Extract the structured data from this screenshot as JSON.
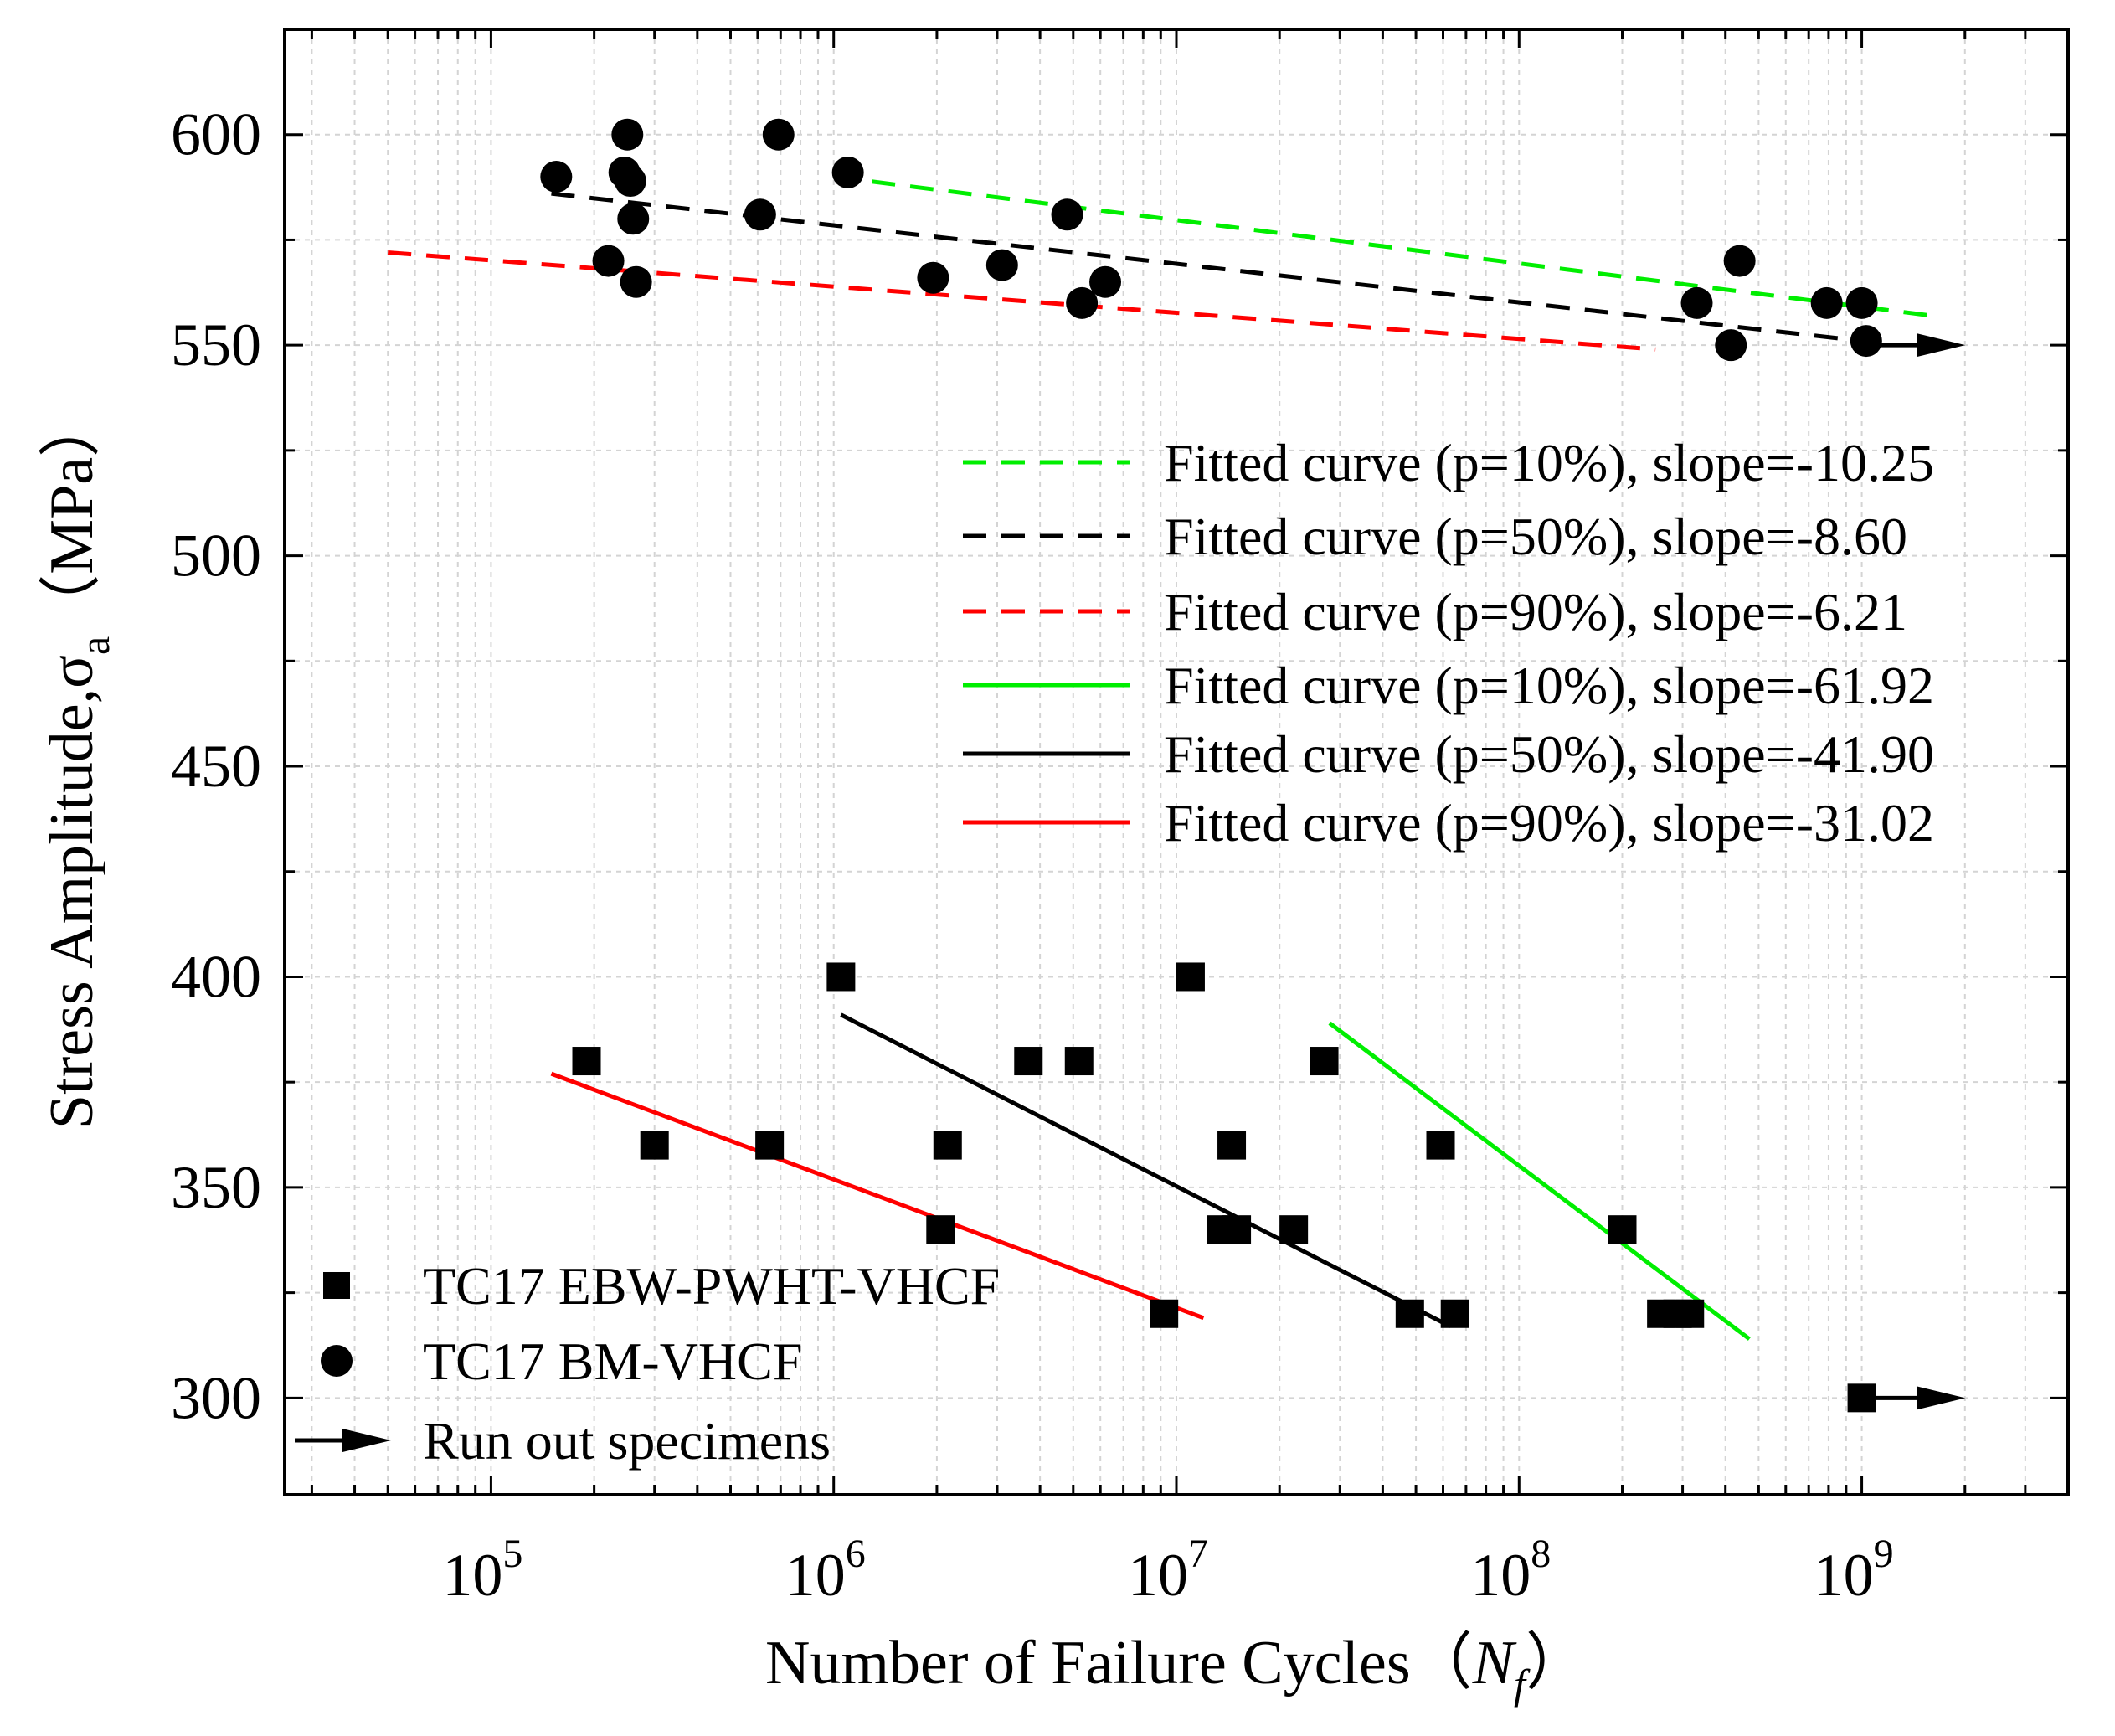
{
  "chart_data": {
    "type": "scatter",
    "xscale": "log",
    "xlim": [
      25000,
      4000000000
    ],
    "ylim": [
      277,
      625
    ],
    "grid": true,
    "xlabel": {
      "main": "Number of Failure Cycles",
      "open": "（",
      "var": "N",
      "sub": "f",
      "close": "）"
    },
    "ylabel": {
      "main": "Stress Amplitude,",
      "sym": "σ",
      "sub": "a",
      "unit": "（MPa）"
    },
    "yticks": [
      {
        "value": 300,
        "label": "300"
      },
      {
        "value": 350,
        "label": "350"
      },
      {
        "value": 400,
        "label": "400"
      },
      {
        "value": 450,
        "label": "450"
      },
      {
        "value": 500,
        "label": "500"
      },
      {
        "value": 550,
        "label": "550"
      },
      {
        "value": 600,
        "label": "600"
      }
    ],
    "xticks": [
      {
        "value": 100000,
        "base": "10",
        "exp": "5"
      },
      {
        "value": 1000000,
        "base": "10",
        "exp": "6"
      },
      {
        "value": 10000000,
        "base": "10",
        "exp": "7"
      },
      {
        "value": 100000000,
        "base": "10",
        "exp": "8"
      },
      {
        "value": 1000000000,
        "base": "10",
        "exp": "9"
      }
    ],
    "series": [
      {
        "name": "TC17 EBW-PWHT-VHCF",
        "marker": "square",
        "points": [
          [
            190000,
            380
          ],
          [
            300000,
            360
          ],
          [
            650000,
            360
          ],
          [
            1050000,
            400
          ],
          [
            2050000,
            340
          ],
          [
            2150000,
            360
          ],
          [
            3700000,
            380
          ],
          [
            5200000,
            380
          ],
          [
            9200000,
            320
          ],
          [
            11000000,
            400
          ],
          [
            13500000,
            340
          ],
          [
            14500000,
            360
          ],
          [
            15000000,
            340
          ],
          [
            22000000,
            340
          ],
          [
            27000000,
            380
          ],
          [
            48000000,
            320
          ],
          [
            59000000,
            360
          ],
          [
            65000000,
            320
          ],
          [
            200000000,
            340
          ],
          [
            260000000,
            320
          ],
          [
            290000000,
            320
          ],
          [
            315000000,
            320
          ],
          [
            1000000000,
            300
          ]
        ]
      },
      {
        "name": "TC17 BM-VHCF",
        "marker": "circle",
        "points": [
          [
            155000,
            590
          ],
          [
            220000,
            570
          ],
          [
            245000,
            591
          ],
          [
            250000,
            600
          ],
          [
            255000,
            589
          ],
          [
            260000,
            580
          ],
          [
            265000,
            565
          ],
          [
            610000,
            581
          ],
          [
            690000,
            600
          ],
          [
            1100000,
            591
          ],
          [
            1950000,
            566
          ],
          [
            3100000,
            569
          ],
          [
            4800000,
            581
          ],
          [
            5300000,
            560
          ],
          [
            6200000,
            565
          ],
          [
            330000000,
            560
          ],
          [
            415000000,
            550
          ],
          [
            440000000,
            570
          ],
          [
            790000000,
            560
          ],
          [
            1000000000,
            560
          ],
          [
            1030000000,
            551
          ]
        ]
      },
      {
        "name": "Run out specimens",
        "marker": "arrow",
        "points": [
          [
            1050000000,
            300
          ],
          [
            1050000000,
            550
          ]
        ]
      }
    ],
    "fitted_curves": [
      {
        "label": "Fitted curve  (p=10%), slope=-10.25",
        "color": "#00ee00",
        "style": "dashed",
        "points": [
          [
            1000000,
            590
          ],
          [
            1600000000,
            557
          ]
        ]
      },
      {
        "label": "Fitted curve  (p=50%), slope=-8.60",
        "color": "#000000",
        "style": "dashed",
        "points": [
          [
            150000,
            586
          ],
          [
            1000000000,
            551
          ]
        ]
      },
      {
        "label": "Fitted curve  (p=90%), slope=-6.21",
        "color": "#ff0000",
        "style": "dashed",
        "points": [
          [
            50000,
            572
          ],
          [
            250000000,
            549
          ]
        ]
      },
      {
        "label": "Fitted curve  (p=10%), slope=-61.92",
        "color": "#00ee00",
        "style": "solid",
        "points": [
          [
            28000000,
            389
          ],
          [
            470000000,
            314
          ]
        ]
      },
      {
        "label": "Fitted curve  (p=50%), slope=-41.90",
        "color": "#000000",
        "style": "solid",
        "points": [
          [
            1050000,
            391
          ],
          [
            63000000,
            317
          ]
        ]
      },
      {
        "label": "Fitted curve  (p=90%), slope=-31.02",
        "color": "#ff0000",
        "style": "solid",
        "points": [
          [
            150000,
            377
          ],
          [
            12000000,
            319
          ]
        ]
      }
    ],
    "legend_markers": [
      {
        "label": "TC17 EBW-PWHT-VHCF",
        "marker": "square"
      },
      {
        "label": "TC17 BM-VHCF",
        "marker": "circle"
      },
      {
        "label": "Run out specimens",
        "marker": "arrow"
      }
    ]
  }
}
